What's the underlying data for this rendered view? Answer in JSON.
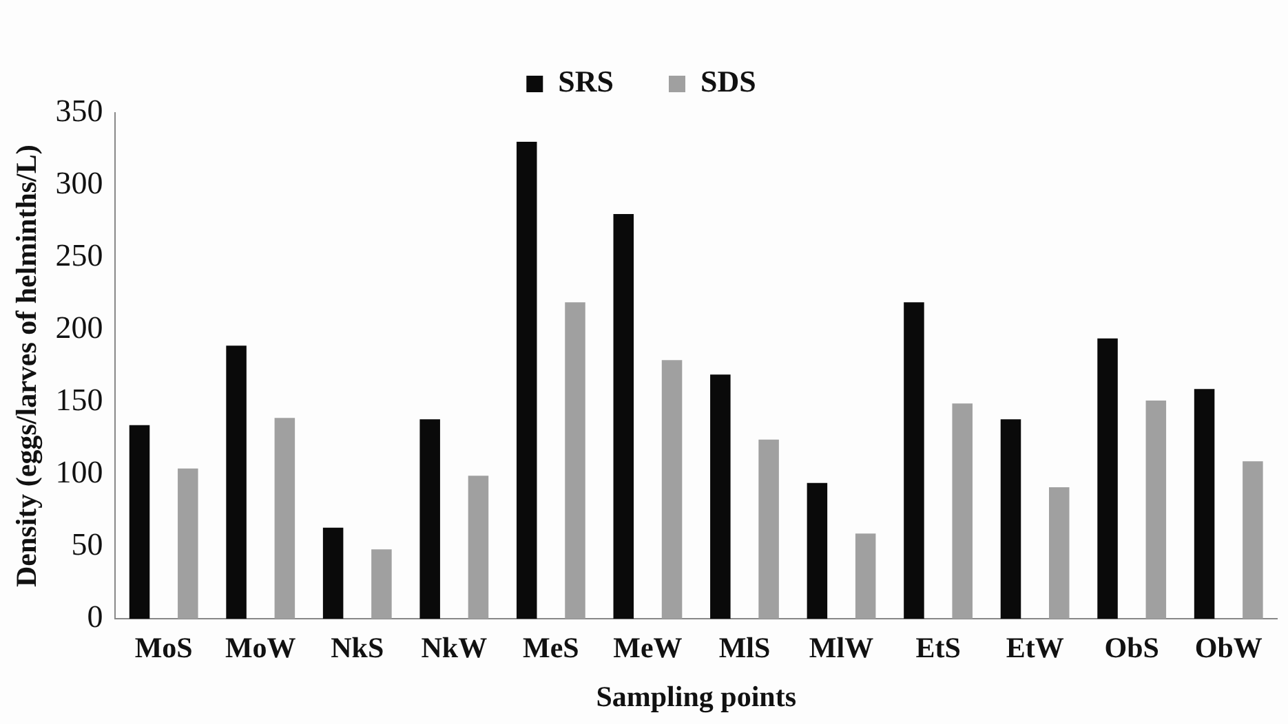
{
  "chart_data": {
    "type": "bar",
    "xlabel": "Sampling points",
    "ylabel": "Density (eggs/larves of helminths/L)",
    "categories": [
      "MoS",
      "MoW",
      "NkS",
      "NkW",
      "MeS",
      "MeW",
      "MlS",
      "MlW",
      "EtS",
      "EtW",
      "ObS",
      "ObW"
    ],
    "series": [
      {
        "name": "SRS",
        "color": "#0a0a0a",
        "values": [
          134,
          189,
          63,
          138,
          330,
          280,
          169,
          94,
          219,
          138,
          194,
          159
        ]
      },
      {
        "name": "SDS",
        "color": "#a0a0a0",
        "values": [
          104,
          139,
          48,
          99,
          219,
          179,
          124,
          59,
          149,
          91,
          151,
          109
        ]
      }
    ],
    "ylim": [
      0,
      350
    ],
    "yticks": [
      0,
      50,
      100,
      150,
      200,
      250,
      300,
      350
    ],
    "grid": false,
    "legend": "top"
  }
}
